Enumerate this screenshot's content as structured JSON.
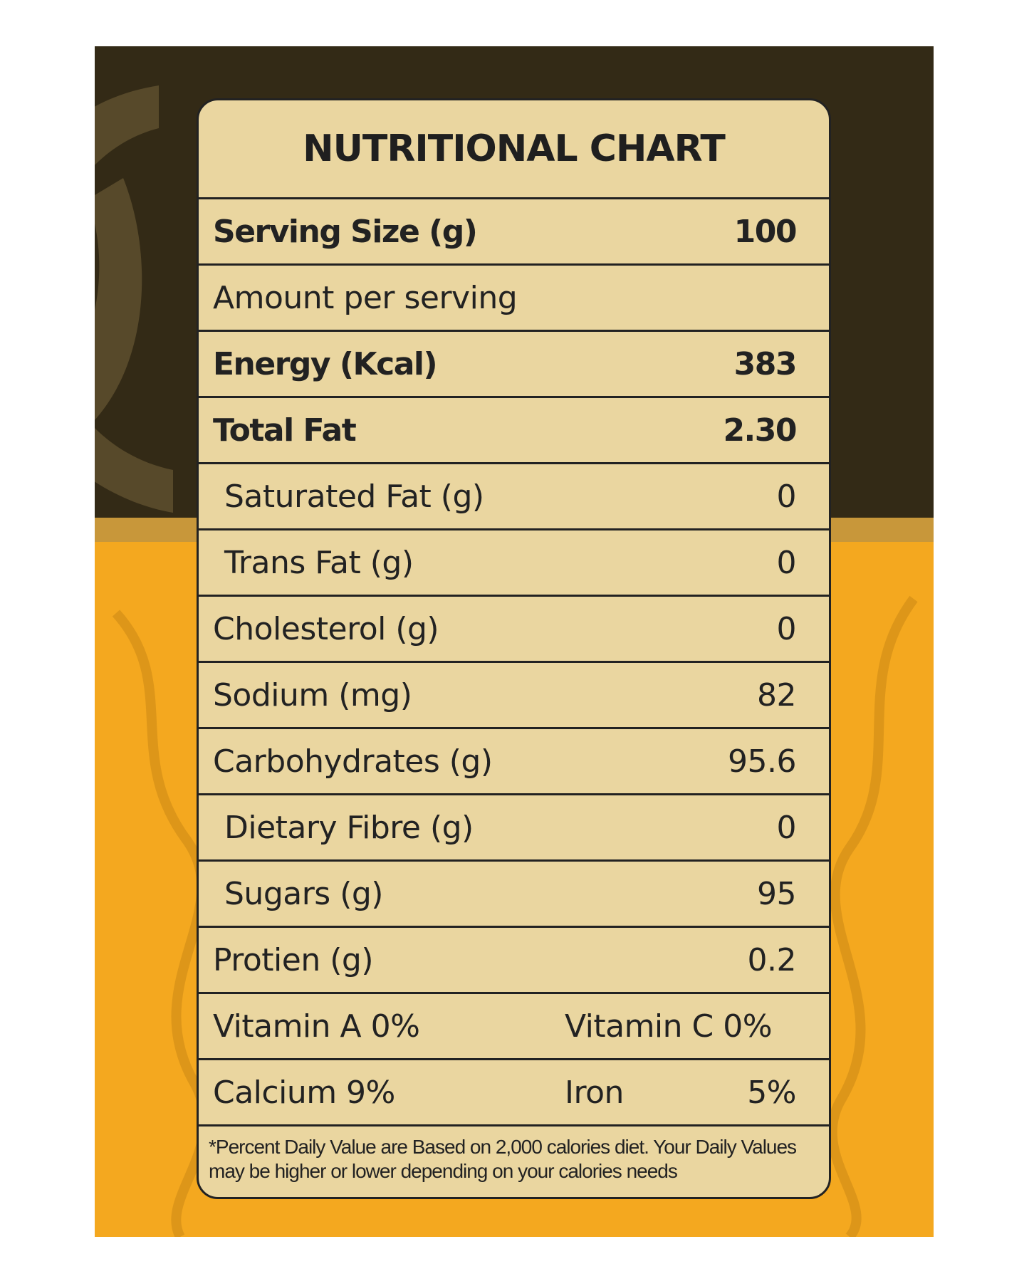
{
  "colors": {
    "dark_bg": "#332a16",
    "accent_leaf": "#57492a",
    "yellow_bg": "#f4a81f",
    "band": "#c8973a",
    "card": "#ead6a0",
    "ink": "#222222"
  },
  "chart": {
    "title": "NUTRITIONAL CHART",
    "rows": [
      {
        "label": "Serving Size (g)",
        "value": "100",
        "style": "bold"
      },
      {
        "label": "Amount per serving",
        "value": "",
        "style": "normal"
      },
      {
        "label": "Energy (Kcal)",
        "value": "383",
        "style": "bold"
      },
      {
        "label": "Total Fat",
        "value": "2.30",
        "style": "bold"
      },
      {
        "label": "Saturated Fat (g)",
        "value": "0",
        "style": "indent"
      },
      {
        "label": "Trans Fat (g)",
        "value": "0",
        "style": "indent"
      },
      {
        "label": "Cholesterol (g)",
        "value": "0",
        "style": "normal"
      },
      {
        "label": "Sodium (mg)",
        "value": "82",
        "style": "normal"
      },
      {
        "label": "Carbohydrates (g)",
        "value": "95.6",
        "style": "normal"
      },
      {
        "label": "Dietary Fibre (g)",
        "value": "0",
        "style": "indent"
      },
      {
        "label": "Sugars (g)",
        "value": "95",
        "style": "indent"
      },
      {
        "label": "Protien (g)",
        "value": "0.2",
        "style": "normal"
      }
    ],
    "vitamins": [
      {
        "left": "Vitamin A 0%",
        "right_label": "Vitamin C 0%",
        "right_value": ""
      },
      {
        "left": "Calcium 9%",
        "right_label": "Iron",
        "right_value": "5%"
      }
    ],
    "footnote": "*Percent Daily Value are Based on 2,000 calories diet. Your Daily Values may be higher or lower depending on your calories needs"
  }
}
